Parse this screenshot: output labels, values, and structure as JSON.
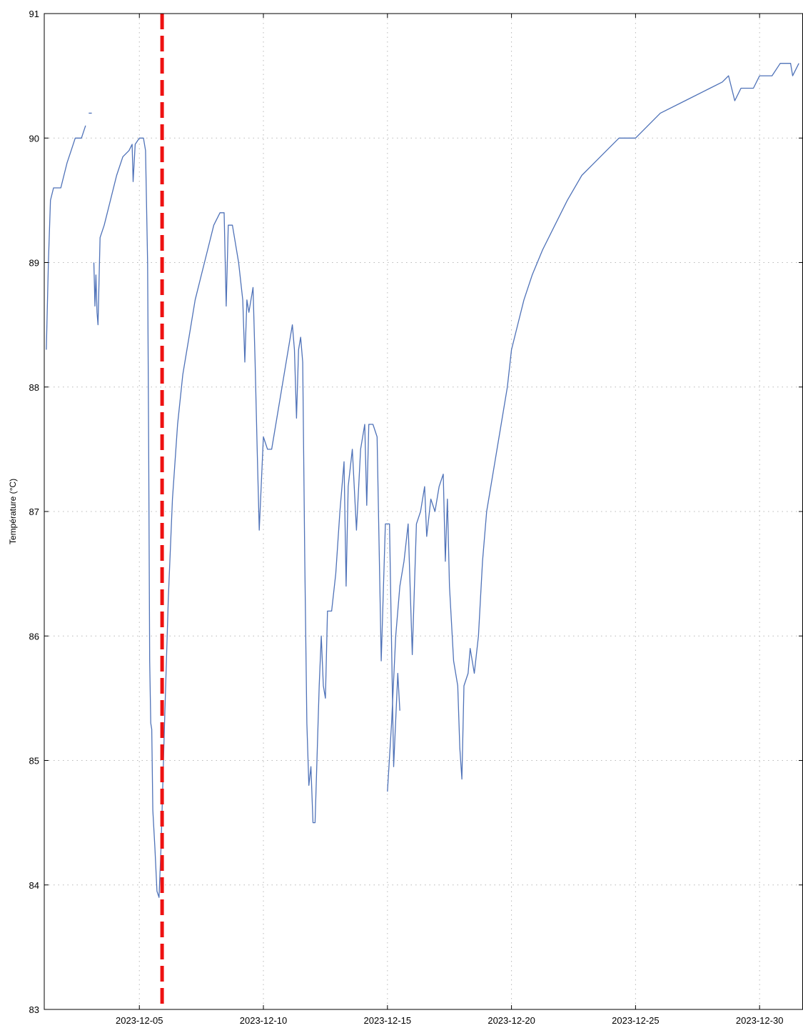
{
  "chart_data": {
    "type": "line",
    "title": "",
    "xlabel": "",
    "ylabel": "Température (°C)",
    "xlim": [
      "2023-12-01T04:00",
      "2023-12-31T18:00"
    ],
    "ylim": [
      83,
      91
    ],
    "x_ticks": [
      "2023-12-05",
      "2023-12-10",
      "2023-12-15",
      "2023-12-20",
      "2023-12-25",
      "2023-12-30"
    ],
    "y_ticks": [
      83,
      84,
      85,
      86,
      87,
      88,
      89,
      90,
      91
    ],
    "grid": true,
    "grid_style": "dotted",
    "line_color": "#4f72b8",
    "marker_line": {
      "x": "2023-12-05T22:00",
      "color": "#ee1111",
      "style": "dashed"
    },
    "series": [
      {
        "segments": [
          [
            [
              "2023-12-01T06:00",
              88.3
            ],
            [
              "2023-12-01T08:00",
              89.0
            ],
            [
              "2023-12-01T10:00",
              89.5
            ],
            [
              "2023-12-01T13:00",
              89.6
            ],
            [
              "2023-12-01T20:00",
              89.6
            ],
            [
              "2023-12-02T02:00",
              89.8
            ],
            [
              "2023-12-02T06:00",
              89.9
            ],
            [
              "2023-12-02T10:00",
              90.0
            ],
            [
              "2023-12-02T16:00",
              90.0
            ],
            [
              "2023-12-02T20:00",
              90.1
            ]
          ],
          [
            [
              "2023-12-02T23:00",
              90.2
            ],
            [
              "2023-12-03T02:00",
              90.2
            ]
          ],
          [
            [
              "2023-12-03T04:00",
              89.0
            ],
            [
              "2023-12-03T05:00",
              88.65
            ],
            [
              "2023-12-03T06:00",
              88.9
            ],
            [
              "2023-12-03T07:00",
              88.6
            ],
            [
              "2023-12-03T08:00",
              88.5
            ],
            [
              "2023-12-03T10:00",
              89.2
            ],
            [
              "2023-12-03T14:00",
              89.3
            ],
            [
              "2023-12-03T20:00",
              89.5
            ],
            [
              "2023-12-04T02:00",
              89.7
            ],
            [
              "2023-12-04T08:00",
              89.85
            ],
            [
              "2023-12-04T14:00",
              89.9
            ],
            [
              "2023-12-04T17:00",
              89.95
            ],
            [
              "2023-12-04T18:00",
              89.65
            ],
            [
              "2023-12-04T20:00",
              89.95
            ],
            [
              "2023-12-05T00:00",
              90.0
            ],
            [
              "2023-12-05T04:00",
              90.0
            ],
            [
              "2023-12-05T06:00",
              89.9
            ],
            [
              "2023-12-05T08:00",
              89.0
            ],
            [
              "2023-12-05T09:00",
              87.5
            ],
            [
              "2023-12-05T10:00",
              85.8
            ],
            [
              "2023-12-05T11:00",
              85.3
            ],
            [
              "2023-12-05T12:00",
              85.25
            ],
            [
              "2023-12-05T13:00",
              84.6
            ],
            [
              "2023-12-05T15:00",
              84.3
            ],
            [
              "2023-12-05T17:00",
              83.95
            ],
            [
              "2023-12-05T19:00",
              83.9
            ],
            [
              "2023-12-05T21:00",
              84.3
            ],
            [
              "2023-12-06T00:00",
              85.2
            ],
            [
              "2023-12-06T04:00",
              86.3
            ],
            [
              "2023-12-06T08:00",
              87.1
            ],
            [
              "2023-12-06T13:00",
              87.7
            ],
            [
              "2023-12-06T18:00",
              88.1
            ],
            [
              "2023-12-07T00:00",
              88.4
            ],
            [
              "2023-12-07T06:00",
              88.7
            ],
            [
              "2023-12-07T12:00",
              88.9
            ],
            [
              "2023-12-07T18:00",
              89.1
            ],
            [
              "2023-12-08T00:00",
              89.3
            ],
            [
              "2023-12-08T06:00",
              89.4
            ],
            [
              "2023-12-08T10:00",
              89.4
            ],
            [
              "2023-12-08T12:00",
              88.65
            ],
            [
              "2023-12-08T14:00",
              89.3
            ],
            [
              "2023-12-08T18:00",
              89.3
            ],
            [
              "2023-12-09T00:00",
              89.0
            ],
            [
              "2023-12-09T04:00",
              88.7
            ],
            [
              "2023-12-09T06:00",
              88.2
            ],
            [
              "2023-12-09T08:00",
              88.7
            ],
            [
              "2023-12-09T10:00",
              88.6
            ],
            [
              "2023-12-09T14:00",
              88.8
            ],
            [
              "2023-12-09T16:00",
              88.2
            ],
            [
              "2023-12-09T18:00",
              87.5
            ],
            [
              "2023-12-09T20:00",
              86.85
            ],
            [
              "2023-12-10T00:00",
              87.6
            ],
            [
              "2023-12-10T04:00",
              87.5
            ],
            [
              "2023-12-10T08:00",
              87.5
            ],
            [
              "2023-12-10T14:00",
              87.8
            ],
            [
              "2023-12-10T20:00",
              88.1
            ],
            [
              "2023-12-11T00:00",
              88.3
            ],
            [
              "2023-12-11T04:00",
              88.5
            ],
            [
              "2023-12-11T06:00",
              88.3
            ],
            [
              "2023-12-11T08:00",
              87.75
            ],
            [
              "2023-12-11T10:00",
              88.3
            ],
            [
              "2023-12-11T12:00",
              88.4
            ],
            [
              "2023-12-11T14:00",
              88.2
            ],
            [
              "2023-12-11T16:00",
              86.6
            ],
            [
              "2023-12-11T18:00",
              85.3
            ],
            [
              "2023-12-11T20:00",
              84.8
            ],
            [
              "2023-12-11T22:00",
              84.95
            ],
            [
              "2023-12-12T00:00",
              84.5
            ],
            [
              "2023-12-12T02:00",
              84.5
            ],
            [
              "2023-12-12T06:00",
              85.6
            ],
            [
              "2023-12-12T08:00",
              86.0
            ],
            [
              "2023-12-12T10:00",
              85.6
            ],
            [
              "2023-12-12T12:00",
              85.5
            ],
            [
              "2023-12-12T14:00",
              86.2
            ],
            [
              "2023-12-12T18:00",
              86.2
            ],
            [
              "2023-12-12T22:00",
              86.5
            ],
            [
              "2023-12-13T02:00",
              87.0
            ],
            [
              "2023-12-13T06:00",
              87.4
            ],
            [
              "2023-12-13T08:00",
              86.4
            ],
            [
              "2023-12-13T10:00",
              87.2
            ],
            [
              "2023-12-13T14:00",
              87.5
            ],
            [
              "2023-12-13T18:00",
              86.85
            ],
            [
              "2023-12-13T22:00",
              87.5
            ],
            [
              "2023-12-14T02:00",
              87.7
            ],
            [
              "2023-12-14T04:00",
              87.05
            ],
            [
              "2023-12-14T06:00",
              87.7
            ],
            [
              "2023-12-14T10:00",
              87.7
            ],
            [
              "2023-12-14T14:00",
              87.6
            ],
            [
              "2023-12-14T18:00",
              85.8
            ],
            [
              "2023-12-14T22:00",
              86.9
            ],
            [
              "2023-12-15T02:00",
              86.9
            ],
            [
              "2023-12-15T06:00",
              84.95
            ],
            [
              "2023-12-15T10:00",
              85.7
            ],
            [
              "2023-12-15T12:00",
              85.4
            ]
          ],
          [
            [
              "2023-12-15T00:00",
              84.75
            ],
            [
              "2023-12-15T04:00",
              85.3
            ],
            [
              "2023-12-15T08:00",
              86.0
            ],
            [
              "2023-12-15T12:00",
              86.4
            ],
            [
              "2023-12-15T16:00",
              86.6
            ],
            [
              "2023-12-15T20:00",
              86.9
            ],
            [
              "2023-12-16T00:00",
              85.85
            ],
            [
              "2023-12-16T04:00",
              86.9
            ],
            [
              "2023-12-16T08:00",
              87.0
            ],
            [
              "2023-12-16T12:00",
              87.2
            ],
            [
              "2023-12-16T14:00",
              86.8
            ],
            [
              "2023-12-16T18:00",
              87.1
            ],
            [
              "2023-12-16T22:00",
              87.0
            ],
            [
              "2023-12-17T02:00",
              87.2
            ],
            [
              "2023-12-17T06:00",
              87.3
            ],
            [
              "2023-12-17T08:00",
              86.6
            ],
            [
              "2023-12-17T10:00",
              87.1
            ],
            [
              "2023-12-17T12:00",
              86.4
            ],
            [
              "2023-12-17T16:00",
              85.8
            ],
            [
              "2023-12-17T20:00",
              85.6
            ],
            [
              "2023-12-17T22:00",
              85.1
            ],
            [
              "2023-12-18T00:00",
              84.85
            ],
            [
              "2023-12-18T02:00",
              85.6
            ],
            [
              "2023-12-18T06:00",
              85.7
            ],
            [
              "2023-12-18T08:00",
              85.9
            ],
            [
              "2023-12-18T12:00",
              85.7
            ],
            [
              "2023-12-18T16:00",
              86.0
            ],
            [
              "2023-12-18T20:00",
              86.6
            ],
            [
              "2023-12-19T00:00",
              87.0
            ],
            [
              "2023-12-19T04:00",
              87.2
            ],
            [
              "2023-12-19T08:00",
              87.4
            ],
            [
              "2023-12-19T12:00",
              87.6
            ],
            [
              "2023-12-19T16:00",
              87.8
            ],
            [
              "2023-12-19T20:00",
              88.0
            ],
            [
              "2023-12-20T00:00",
              88.3
            ],
            [
              "2023-12-20T06:00",
              88.5
            ],
            [
              "2023-12-20T12:00",
              88.7
            ],
            [
              "2023-12-20T20:00",
              88.9
            ],
            [
              "2023-12-21T06:00",
              89.1
            ],
            [
              "2023-12-21T18:00",
              89.3
            ],
            [
              "2023-12-22T06:00",
              89.5
            ],
            [
              "2023-12-22T20:00",
              89.7
            ],
            [
              "2023-12-23T08:00",
              89.8
            ],
            [
              "2023-12-23T20:00",
              89.9
            ],
            [
              "2023-12-24T08:00",
              90.0
            ],
            [
              "2023-12-25T00:00",
              90.0
            ],
            [
              "2023-12-25T12:00",
              90.1
            ],
            [
              "2023-12-26T00:00",
              90.2
            ],
            [
              "2023-12-27T00:00",
              90.3
            ],
            [
              "2023-12-28T00:00",
              90.4
            ],
            [
              "2023-12-28T12:00",
              90.45
            ],
            [
              "2023-12-28T18:00",
              90.5
            ],
            [
              "2023-12-29T00:00",
              90.3
            ],
            [
              "2023-12-29T06:00",
              90.4
            ],
            [
              "2023-12-29T18:00",
              90.4
            ],
            [
              "2023-12-30T00:00",
              90.5
            ],
            [
              "2023-12-30T12:00",
              90.5
            ],
            [
              "2023-12-30T20:00",
              90.6
            ],
            [
              "2023-12-31T06:00",
              90.6
            ],
            [
              "2023-12-31T08:00",
              90.5
            ],
            [
              "2023-12-31T14:00",
              90.6
            ]
          ]
        ]
      }
    ]
  }
}
